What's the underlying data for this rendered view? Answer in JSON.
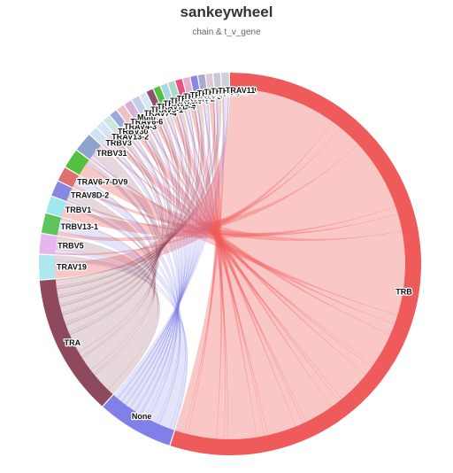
{
  "chart_data": {
    "type": "sankey-wheel",
    "title": "sankeywheel",
    "subtitle": "chain & t_v_gene",
    "source_nodes": [
      {
        "name": "TRB",
        "value": 120,
        "color": "#ef5a5a"
      },
      {
        "name": "None",
        "value": 14,
        "color": "#8080e8"
      },
      {
        "name": "TRA",
        "value": 26,
        "color": "#8e4a5c"
      }
    ],
    "target_nodes": [
      {
        "name": "TRAV19",
        "value": 4.5,
        "color": "#aee8ee"
      },
      {
        "name": "TRBV5",
        "value": 3.6,
        "color": "#e9b5ee"
      },
      {
        "name": "TRBV13-1",
        "value": 3.6,
        "color": "#5cc45c"
      },
      {
        "name": "TRBV1",
        "value": 3.0,
        "color": "#9ee8ee"
      },
      {
        "name": "TRAV8D-2",
        "value": 2.8,
        "color": "#8888e0"
      },
      {
        "name": "TRAV6-7-DV9",
        "value": 2.6,
        "color": "#e07070"
      },
      {
        "name": "",
        "value": 3.5,
        "color": "#55c040"
      },
      {
        "name": "TRBV31",
        "value": 3.5,
        "color": "#8fa4cc"
      },
      {
        "name": "TRBV3",
        "value": 1.6,
        "color": "#cfe4f0"
      },
      {
        "name": "TRAV13-2",
        "value": 1.4,
        "color": "#d4e4f4"
      },
      {
        "name": "TRBV30",
        "value": 1.4,
        "color": "#c8e8e0"
      },
      {
        "name": "TRAV4-3",
        "value": 1.4,
        "color": "#9aaadd"
      },
      {
        "name": "TRAV6-6",
        "value": 1.4,
        "color": "#f0c0c8"
      },
      {
        "name": "Multi",
        "value": 1.4,
        "color": "#d8b0d8"
      },
      {
        "name": "TRAV7-4",
        "value": 1.4,
        "color": "#c0d0e8"
      },
      {
        "name": "TRAV5-1",
        "value": 1.2,
        "color": "#d8e8f0"
      },
      {
        "name": "TRAV7D-4",
        "value": 1.2,
        "color": "#8c5070"
      },
      {
        "name": "TRAV6-1",
        "value": 1.2,
        "color": "#55c040"
      },
      {
        "name": "TRAV5N-4",
        "value": 1.2,
        "color": "#a8d8e0"
      },
      {
        "name": "TRAV9N-2",
        "value": 1.2,
        "color": "#a8d8c8"
      },
      {
        "name": "TRAV3N-3",
        "value": 1.2,
        "color": "#e85080"
      },
      {
        "name": "TRAV3-4",
        "value": 1.2,
        "color": "#e8b0c8"
      },
      {
        "name": "TRAV13N-3",
        "value": 1.2,
        "color": "#8888e0"
      },
      {
        "name": "TRAV13D-4",
        "value": 1.2,
        "color": "#a8a8d0"
      },
      {
        "name": "TRAV9-4",
        "value": 1.2,
        "color": "#e0c8d8"
      },
      {
        "name": "TRAV9N-4",
        "value": 1.2,
        "color": "#c8c8d8"
      },
      {
        "name": "TRAV11",
        "value": 1.4,
        "color": "#d0d0d8"
      }
    ]
  }
}
